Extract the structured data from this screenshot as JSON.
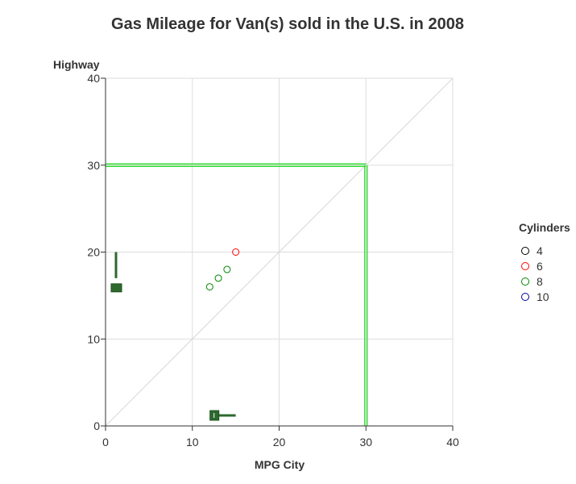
{
  "chart_data": {
    "type": "scatter",
    "title": "Gas Mileage for Van(s) sold in the U.S. in 2008",
    "xlabel": "MPG City",
    "ylabel": "Highway",
    "xlim": [
      0,
      40
    ],
    "ylim": [
      0,
      40
    ],
    "xticks": [
      0,
      10,
      20,
      30,
      40
    ],
    "yticks": [
      0,
      10,
      20,
      30,
      40
    ],
    "grid": true,
    "diagonal_reference_line": true,
    "threshold_lines": {
      "x": 30,
      "y": 30,
      "color": "#33dd33"
    },
    "legend": {
      "title": "Cylinders",
      "position": "right",
      "items": [
        {
          "label": "4",
          "color": "#000000"
        },
        {
          "label": "6",
          "color": "#ff0000"
        },
        {
          "label": "8",
          "color": "#008800"
        },
        {
          "label": "10",
          "color": "#0000aa"
        }
      ]
    },
    "series": [
      {
        "name": "4",
        "color": "#000000",
        "points": []
      },
      {
        "name": "6",
        "color": "#ff0000",
        "points": [
          {
            "x": 15,
            "y": 20
          }
        ]
      },
      {
        "name": "8",
        "color": "#008800",
        "points": [
          {
            "x": 12,
            "y": 16
          },
          {
            "x": 13,
            "y": 17
          },
          {
            "x": 14,
            "y": 18
          }
        ]
      },
      {
        "name": "10",
        "color": "#0000aa",
        "points": []
      }
    ],
    "box_summary_x": {
      "min": 12,
      "q1": 12.5,
      "median": 12.5,
      "q3": 13,
      "max": 15,
      "color": "#2d6a2d"
    },
    "box_summary_y": {
      "min": 16,
      "q1": 16,
      "median": 16.5,
      "q3": 17,
      "max": 20,
      "color": "#2d6a2d"
    }
  }
}
